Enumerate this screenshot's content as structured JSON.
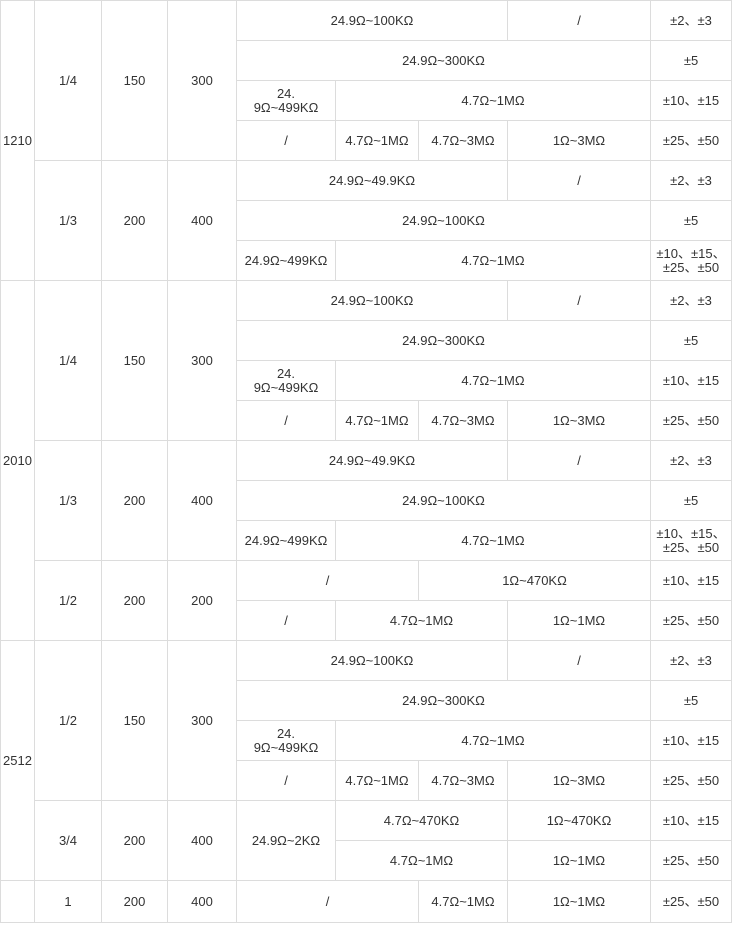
{
  "sizes": [
    "1210",
    "2010",
    "2512"
  ],
  "groups": [
    {
      "power": "1/4",
      "voltage": "150",
      "overload": "300",
      "rows": [
        {
          "r1": "24.9Ω~100KΩ",
          "r2": "/",
          "tol": "±2、±3"
        },
        {
          "r1": "24.9Ω~300KΩ",
          "tol": "±5"
        },
        {
          "r1": "24.\n9Ω~499KΩ",
          "r2": "4.7Ω~1MΩ",
          "tol": "±10、±15"
        },
        {
          "r1": "/",
          "r2": "4.7Ω~1MΩ",
          "r3": "4.7Ω~3MΩ",
          "r4": "1Ω~3MΩ",
          "tol": "±25、±50"
        }
      ]
    },
    {
      "power": "1/3",
      "voltage": "200",
      "overload": "400",
      "rows": [
        {
          "r1": "24.9Ω~49.9KΩ",
          "r2": "/",
          "tol": "±2、±3"
        },
        {
          "r1": "24.9Ω~100KΩ",
          "tol": "±5"
        },
        {
          "r1": "24.9Ω~499KΩ",
          "r2": "4.7Ω~1MΩ",
          "tol": "±10、±15、\n±25、±50"
        }
      ]
    },
    {
      "power": "1/4",
      "voltage": "150",
      "overload": "300",
      "rows": [
        {
          "r1": "24.9Ω~100KΩ",
          "r2": "/",
          "tol": "±2、±3"
        },
        {
          "r1": "24.9Ω~300KΩ",
          "tol": "±5"
        },
        {
          "r1": "24.\n9Ω~499KΩ",
          "r2": "4.7Ω~1MΩ",
          "tol": "±10、±15"
        },
        {
          "r1": "/",
          "r2": "4.7Ω~1MΩ",
          "r3": "4.7Ω~3MΩ",
          "r4": "1Ω~3MΩ",
          "tol": "±25、±50"
        }
      ]
    },
    {
      "power": "1/3",
      "voltage": "200",
      "overload": "400",
      "rows": [
        {
          "r1": "24.9Ω~49.9KΩ",
          "r2": "/",
          "tol": "±2、±3"
        },
        {
          "r1": "24.9Ω~100KΩ",
          "tol": "±5"
        },
        {
          "r1": "24.9Ω~499KΩ",
          "r2": "4.7Ω~1MΩ",
          "tol": "±10、±15、\n±25、±50"
        }
      ]
    },
    {
      "power": "1/2",
      "voltage": "200",
      "overload": "200",
      "rows": [
        {
          "r1": "/",
          "r2": "1Ω~470KΩ",
          "tol": "±10、±15"
        },
        {
          "r1": "/",
          "r2": "4.7Ω~1MΩ",
          "r3": "1Ω~1MΩ",
          "tol": "±25、±50"
        }
      ]
    },
    {
      "power": "1/2",
      "voltage": "150",
      "overload": "300",
      "rows": [
        {
          "r1": "24.9Ω~100KΩ",
          "r2": "/",
          "tol": "±2、±3"
        },
        {
          "r1": "24.9Ω~300KΩ",
          "tol": "±5"
        },
        {
          "r1": "24.\n9Ω~499KΩ",
          "r2": "4.7Ω~1MΩ",
          "tol": "±10、±15"
        },
        {
          "r1": "/",
          "r2": "4.7Ω~1MΩ",
          "r3": "4.7Ω~3MΩ",
          "r4": "1Ω~3MΩ",
          "tol": "±25、±50"
        }
      ]
    },
    {
      "power": "3/4",
      "voltage": "200",
      "overload": "400",
      "rows": [
        {
          "r1": "24.9Ω~2KΩ",
          "r2": "4.7Ω~470KΩ",
          "r3": "1Ω~470KΩ",
          "tol": "±10、±15"
        },
        {
          "r2": "4.7Ω~1MΩ",
          "r3": "1Ω~1MΩ",
          "tol": "±25、±50"
        }
      ]
    },
    {
      "power": "1",
      "voltage": "200",
      "overload": "400",
      "rows": [
        {
          "r1": "/",
          "r2": "4.7Ω~1MΩ",
          "r3": "1Ω~1MΩ",
          "tol": "±25、±50"
        }
      ]
    }
  ]
}
